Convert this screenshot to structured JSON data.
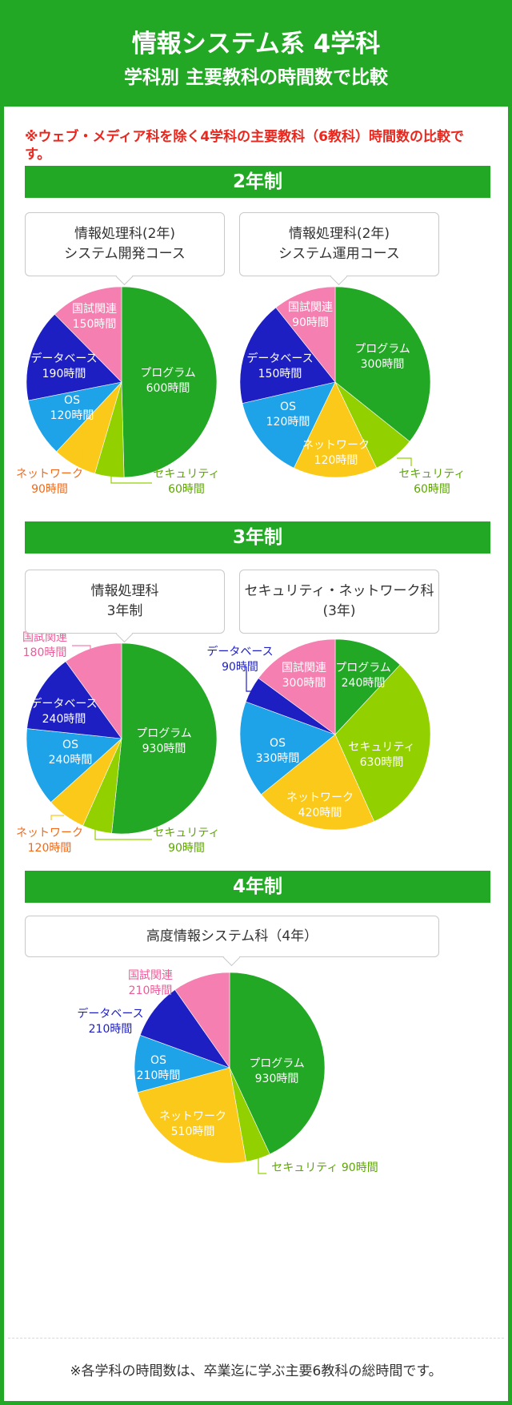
{
  "header": {
    "title": "情報システム系 4学科",
    "subtitle": "学科別 主要教科の時間数で比較"
  },
  "note": "※ウェブ・メディア科を除く4学科の主要教科（6教科）時間数の比較です。",
  "sections": {
    "two_year": "2年制",
    "three_year": "3年制",
    "four_year": "4年制"
  },
  "colors": {
    "プログラム": "#22a824",
    "セキュリティ": "#92d000",
    "ネットワーク": "#fbc91a",
    "OS": "#1fa3e8",
    "データベース": "#1d1fc2",
    "国試関連": "#f57fb0"
  },
  "label_colors": {
    "ネットワーク": "#f06a1a",
    "セキュリティ": "#5ca800",
    "データベース": "#1d1fc2",
    "国試関連": "#ec5b9a"
  },
  "chart_data": [
    {
      "type": "pie",
      "title": "情報処理科(2年)",
      "subtitle": "システム開発コース",
      "categories": [
        "プログラム",
        "セキュリティ",
        "ネットワーク",
        "OS",
        "データベース",
        "国試関連"
      ],
      "values": [
        600,
        60,
        90,
        120,
        190,
        150
      ],
      "labels": [
        "600時間",
        "60時間",
        "90時間",
        "120時間",
        "190時間",
        "150時間"
      ]
    },
    {
      "type": "pie",
      "title": "情報処理科(2年)",
      "subtitle": "システム運用コース",
      "categories": [
        "プログラム",
        "セキュリティ",
        "ネットワーク",
        "OS",
        "データベース",
        "国試関連"
      ],
      "values": [
        300,
        60,
        120,
        120,
        150,
        90
      ],
      "labels": [
        "300時間",
        "60時間",
        "120時間",
        "120時間",
        "150時間",
        "90時間"
      ]
    },
    {
      "type": "pie",
      "title": "情報処理科",
      "subtitle": "3年制",
      "categories": [
        "プログラム",
        "セキュリティ",
        "ネットワーク",
        "OS",
        "データベース",
        "国試関連"
      ],
      "values": [
        930,
        90,
        120,
        240,
        240,
        180
      ],
      "labels": [
        "930時間",
        "90時間",
        "120時間",
        "240時間",
        "240時間",
        "180時間"
      ]
    },
    {
      "type": "pie",
      "title": "セキュリティ・ネットワーク科",
      "subtitle": "(3年)",
      "categories": [
        "プログラム",
        "セキュリティ",
        "ネットワーク",
        "OS",
        "データベース",
        "国試関連"
      ],
      "values": [
        240,
        630,
        420,
        330,
        90,
        300
      ],
      "labels": [
        "240時間",
        "630時間",
        "420時間",
        "330時間",
        "90時間",
        "300時間"
      ]
    },
    {
      "type": "pie",
      "title": "高度情報システム科（4年）",
      "subtitle": "",
      "categories": [
        "プログラム",
        "セキュリティ",
        "ネットワーク",
        "OS",
        "データベース",
        "国試関連"
      ],
      "values": [
        930,
        90,
        510,
        210,
        210,
        210
      ],
      "labels": [
        "930時間",
        "90時間",
        "510時間",
        "210時間",
        "210時間",
        "210時間"
      ]
    }
  ],
  "footer": "※各学科の時間数は、卒業迄に学ぶ主要6教科の総時間です。"
}
